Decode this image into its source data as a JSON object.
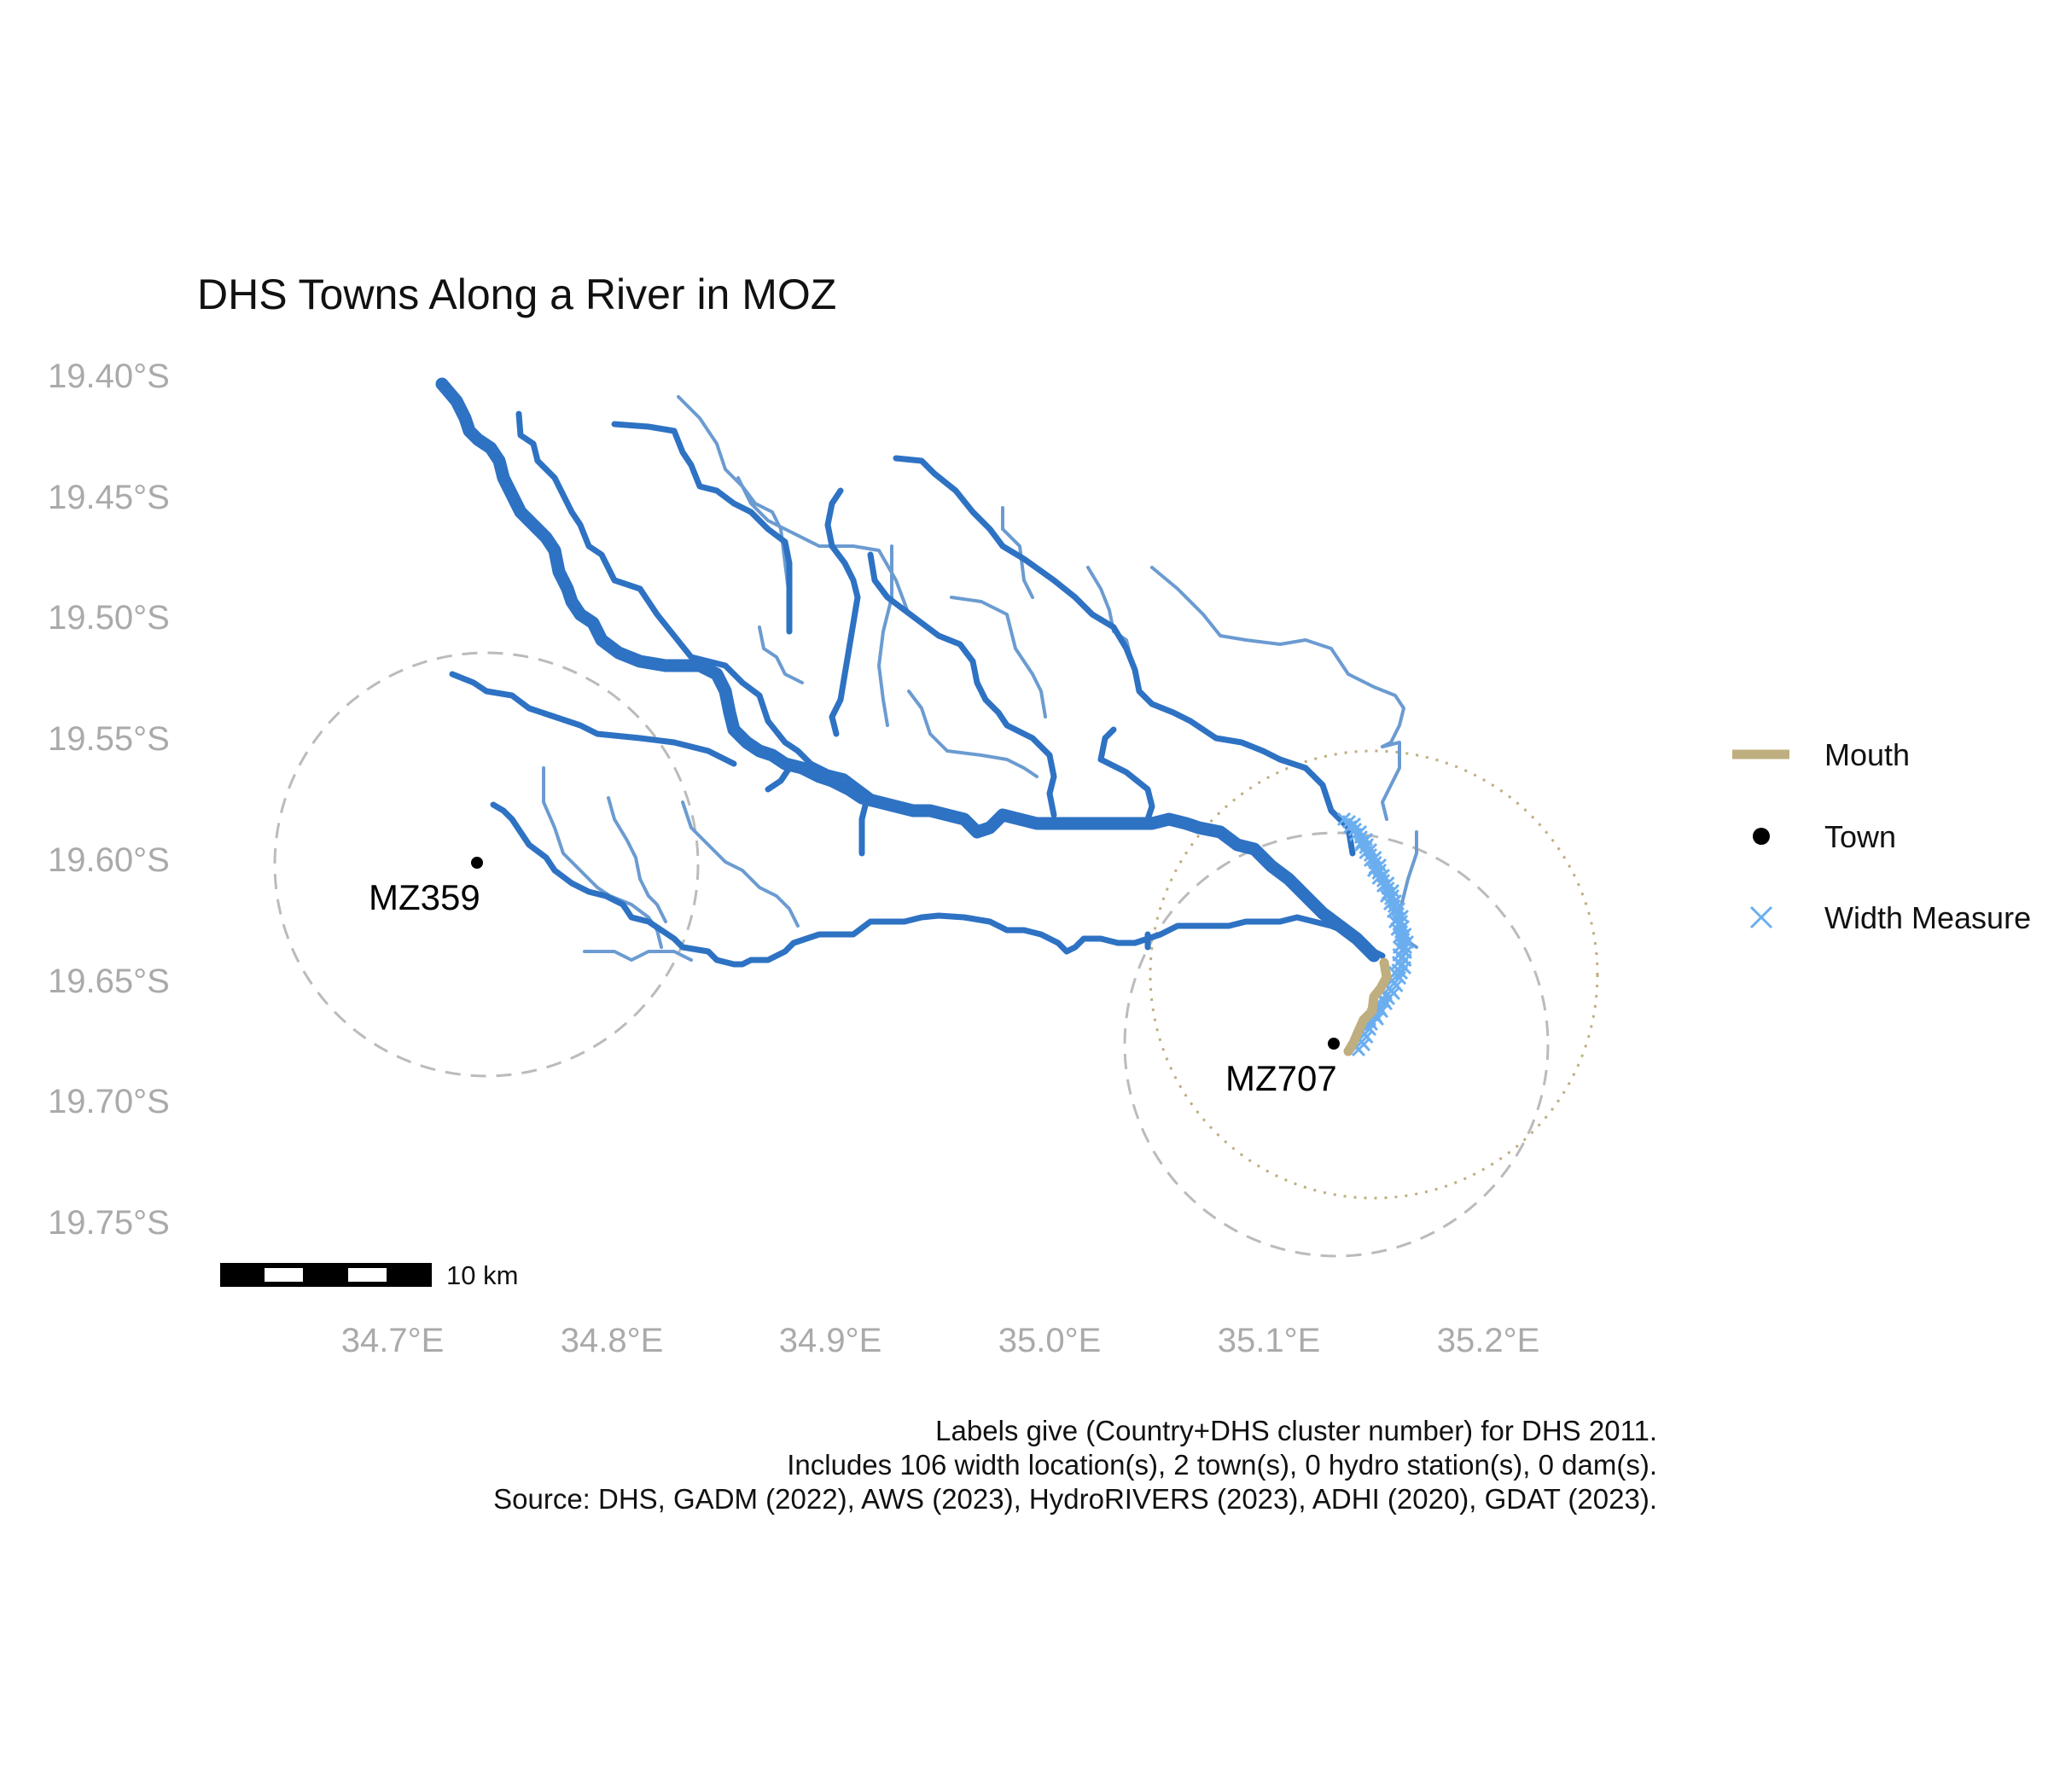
{
  "title": "DHS Towns Along a River in MOZ",
  "axes": {
    "y_ticks": [
      "19.40°S",
      "19.45°S",
      "19.50°S",
      "19.55°S",
      "19.60°S",
      "19.65°S",
      "19.70°S",
      "19.75°S"
    ],
    "x_ticks": [
      "34.7°E",
      "34.8°E",
      "34.9°E",
      "35.0°E",
      "35.1°E",
      "35.2°E"
    ]
  },
  "towns": [
    {
      "label": "MZ359",
      "lon": 34.737,
      "lat": -19.603
    },
    {
      "label": "MZ707",
      "lon": 35.13,
      "lat": -19.677
    }
  ],
  "legend": {
    "items": [
      {
        "label": "Mouth",
        "color": "#bfae7f"
      },
      {
        "label": "Town",
        "color": "#000000"
      },
      {
        "label": "Width Measure",
        "color": "#6aaef0"
      }
    ]
  },
  "scale_bar": {
    "label": "10 km"
  },
  "caption": [
    "Labels give (Country+DHS cluster number) for DHS 2011.",
    "Includes 106 width location(s), 2 town(s), 0 hydro station(s), 0 dam(s).",
    "Source: DHS, GADM (2022), AWS (2023), HydroRIVERS (2023), ADHI (2020), GDAT (2023)."
  ],
  "colors": {
    "river_main": "#2e72c3",
    "river_minor": "#6b9bd1",
    "width_measure": "#6aaef0",
    "mouth": "#bfae7f",
    "buffer_circle": "#bbbbbb",
    "axis_text": "#aaaaaa"
  }
}
